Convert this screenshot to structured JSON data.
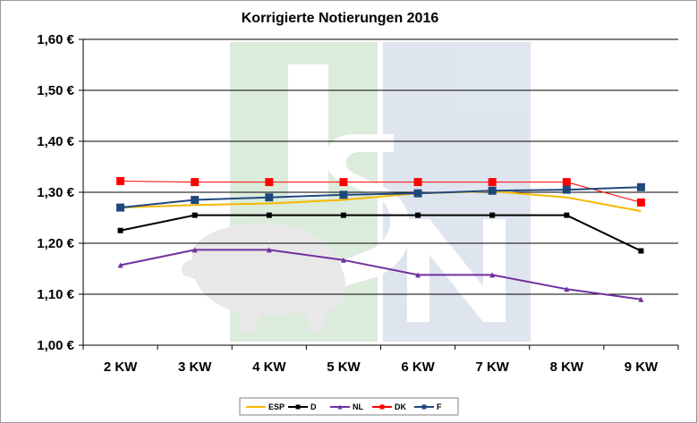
{
  "chart_data": {
    "type": "line",
    "title": "Korrigierte Notierungen 2016",
    "categories": [
      "2 KW",
      "3 KW",
      "4 KW",
      "5 KW",
      "6 KW",
      "7 KW",
      "8 KW",
      "9 KW"
    ],
    "ylim": [
      1.0,
      1.6
    ],
    "y_ticks": [
      "1,00 €",
      "1,10 €",
      "1,20 €",
      "1,30 €",
      "1,40 €",
      "1,50 €",
      "1,60 €"
    ],
    "grid": true,
    "legend_position": "bottom",
    "series": [
      {
        "name": "ESP",
        "color": "#f5b800",
        "marker": "none",
        "values": [
          1.27,
          1.275,
          1.278,
          1.285,
          1.298,
          1.302,
          1.29,
          1.263
        ]
      },
      {
        "name": "D",
        "color": "#000000",
        "marker": "square",
        "values": [
          1.225,
          1.255,
          1.255,
          1.255,
          1.255,
          1.255,
          1.255,
          1.185
        ]
      },
      {
        "name": "NL",
        "color": "#7030a0",
        "marker": "triangle",
        "values": [
          1.157,
          1.187,
          1.187,
          1.167,
          1.138,
          1.138,
          1.11,
          1.09
        ]
      },
      {
        "name": "DK",
        "color": "#ff0000",
        "marker": "square",
        "values": [
          1.322,
          1.32,
          1.32,
          1.32,
          1.32,
          1.32,
          1.32,
          1.28
        ]
      },
      {
        "name": "F",
        "color": "#1f497d",
        "marker": "square",
        "values": [
          1.27,
          1.285,
          1.29,
          1.295,
          1.298,
          1.303,
          1.305,
          1.31
        ]
      }
    ]
  }
}
